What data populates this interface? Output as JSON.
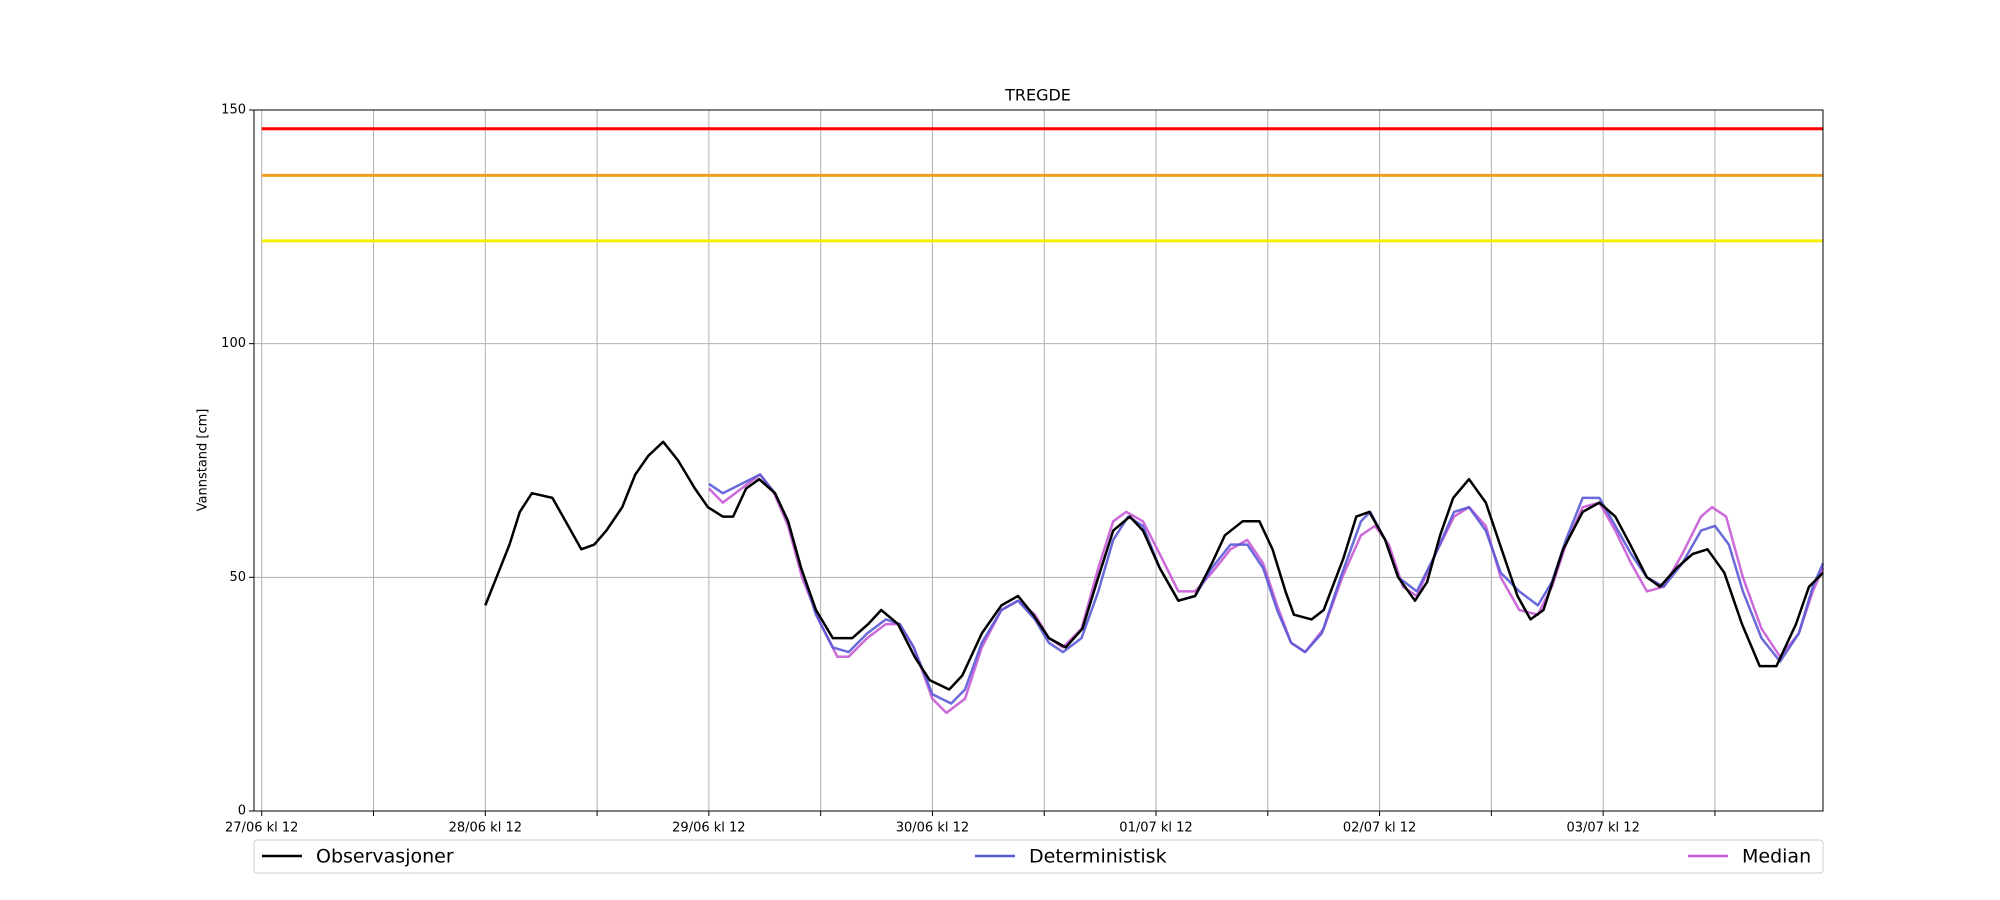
{
  "chart_data": {
    "type": "line",
    "title": "TREGDE",
    "y_label": "Vannstand [cm]",
    "xlim": [
      -0.83,
      167.6
    ],
    "ylim": [
      0,
      150
    ],
    "xticks": [
      {
        "value": 0,
        "label": "27/06 kl 12"
      },
      {
        "value": 24,
        "label": "28/06 kl 12"
      },
      {
        "value": 48,
        "label": "29/06 kl 12"
      },
      {
        "value": 72,
        "label": "30/06 kl 12"
      },
      {
        "value": 96,
        "label": "01/07 kl 12"
      },
      {
        "value": 120,
        "label": "02/07 kl 12"
      },
      {
        "value": 144,
        "label": "03/07 kl 12"
      }
    ],
    "xticks_minor": [
      12,
      36,
      60,
      84,
      108,
      132,
      156
    ],
    "yticks": [
      0,
      50,
      100,
      150
    ],
    "grid": true,
    "thresholds": [
      {
        "value": 146,
        "color": "#ff0000"
      },
      {
        "value": 136,
        "color": "#f0a020"
      },
      {
        "value": 122,
        "color": "#f5f000"
      }
    ],
    "series": [
      {
        "name": "Observasjoner",
        "color": "#000000",
        "x": [
          24,
          25.2,
          26.6,
          27.7,
          29,
          31.2,
          32.9,
          34.3,
          35.7,
          37,
          38.7,
          40.1,
          41.5,
          43.1,
          44.7,
          46.5,
          47.9,
          49.5,
          50.6,
          52,
          53.4,
          55.1,
          56.5,
          57.9,
          59.5,
          61.3,
          63.4,
          65.1,
          66.5,
          68.3,
          70.1,
          71.7,
          73.8,
          75.2,
          77.3,
          79.4,
          81.2,
          82.8,
          84.5,
          86.3,
          88.1,
          89.8,
          91.4,
          93.2,
          94.6,
          96.4,
          98.4,
          100.2,
          102,
          103.4,
          105.3,
          107.1,
          108.5,
          109.9,
          110.8,
          112.7,
          114,
          116.1,
          117.5,
          118.9,
          120.6,
          122,
          123.8,
          125.1,
          126.5,
          127.9,
          129.6,
          131.4,
          133.1,
          134.8,
          136.2,
          137.6,
          139.7,
          141.8,
          143.6,
          145.3,
          146.9,
          148.7,
          150.1,
          151.9,
          153.6,
          155.2,
          157,
          158.9,
          160.8,
          162.6,
          164.7,
          166.1,
          167.6
        ],
        "values": [
          44,
          50,
          57,
          64,
          68,
          67,
          61,
          56,
          57,
          60,
          65,
          72,
          76,
          79,
          75,
          69,
          65,
          63,
          63,
          69,
          71,
          68,
          62,
          52,
          43,
          37,
          37,
          40,
          43,
          40,
          33,
          28,
          26,
          29,
          38,
          44,
          46,
          42,
          37,
          35,
          39,
          50,
          60,
          63,
          60,
          52,
          45,
          46,
          53,
          59,
          62,
          62,
          56,
          47,
          42,
          41,
          43,
          54,
          63,
          64,
          58,
          50,
          45,
          49,
          59,
          67,
          71,
          66,
          56,
          46,
          41,
          43,
          56,
          64,
          66,
          63,
          57,
          50,
          48,
          52,
          55,
          56,
          51,
          40,
          31,
          31,
          40,
          48,
          51
        ]
      },
      {
        "name": "Deterministisk",
        "color": "#5a5ad6",
        "x": [
          48,
          49.5,
          51.5,
          53.5,
          55.1,
          56.5,
          57.9,
          59.5,
          61.3,
          63,
          65,
          67,
          68.5,
          70,
          72,
          74,
          75.5,
          77.3,
          79.4,
          81.2,
          83,
          84.5,
          86,
          88,
          89.8,
          91.4,
          93,
          94.6,
          96.4,
          98.4,
          100.2,
          102,
          104,
          105.8,
          107.5,
          109,
          110.5,
          112,
          113.8,
          116,
          118,
          119,
          120.6,
          122,
          124,
          126,
          128,
          129.6,
          131.4,
          133,
          135,
          137,
          138.5,
          140,
          141.8,
          143.6,
          145.3,
          147,
          148.7,
          150.5,
          152.5,
          154.5,
          156,
          157.5,
          159,
          161,
          163,
          165,
          166.5,
          167.6
        ],
        "values": [
          70,
          68,
          70,
          72,
          68,
          62,
          52,
          42,
          35,
          34,
          38,
          41,
          40,
          35,
          25,
          23,
          26,
          36,
          43,
          45,
          41,
          36,
          34,
          37,
          47,
          58,
          63,
          61,
          52,
          45,
          46,
          52,
          57,
          57,
          52,
          43,
          36,
          34,
          38,
          51,
          62,
          64,
          58,
          50,
          47,
          55,
          64,
          65,
          60,
          51,
          47,
          44,
          49,
          58,
          67,
          67,
          61,
          55,
          50,
          48,
          53,
          60,
          61,
          57,
          47,
          37,
          32,
          38,
          48,
          53
        ]
      },
      {
        "name": "Median",
        "color": "#c85ad6",
        "x": [
          48,
          49.5,
          51.5,
          53.5,
          55,
          56.5,
          58,
          60,
          61.8,
          63,
          65,
          67,
          68.5,
          70,
          72,
          73.5,
          75.5,
          77.3,
          79.4,
          81.2,
          83,
          84.5,
          86,
          88,
          89.8,
          91.4,
          92.8,
          94.6,
          96.4,
          98.4,
          100.2,
          102,
          104,
          105.8,
          107.5,
          109,
          110.5,
          112,
          114,
          116,
          118,
          119.5,
          121,
          122.5,
          124,
          126,
          128,
          129.6,
          131.4,
          133,
          135,
          137,
          138.5,
          140,
          141.8,
          143.6,
          145.3,
          147,
          148.7,
          150.5,
          152.5,
          154.5,
          155.7,
          157.2,
          159,
          161,
          163,
          165,
          166.5,
          167.6
        ],
        "values": [
          69,
          66,
          69,
          72,
          68,
          61,
          50,
          40,
          33,
          33,
          37,
          40,
          40,
          35,
          24,
          21,
          24,
          35,
          43,
          45,
          42,
          37,
          35,
          39,
          52,
          62,
          64,
          62,
          55,
          47,
          47,
          51,
          56,
          58,
          53,
          44,
          36,
          34,
          39,
          50,
          59,
          61,
          57,
          48,
          46,
          55,
          63,
          65,
          61,
          50,
          43,
          42,
          48,
          57,
          65,
          66,
          60,
          53,
          47,
          48,
          55,
          63,
          65,
          63,
          50,
          39,
          33,
          38,
          47,
          52
        ]
      }
    ]
  }
}
